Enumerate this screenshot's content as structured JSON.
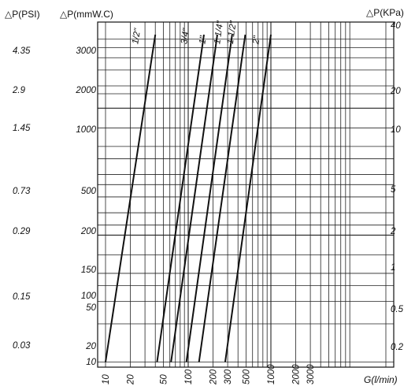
{
  "chart_data": {
    "type": "line",
    "axes": {
      "psi": {
        "title": "△P(PSI)",
        "ticks": [
          "4.35",
          "2.9",
          "1.45",
          "0.73",
          "0.29",
          "0.15",
          "0.03"
        ]
      },
      "mmwc": {
        "title": "△P(mmW.C)",
        "ticks": [
          "3000",
          "2000",
          "1000",
          "500",
          "200",
          "150",
          "100",
          "50",
          "20",
          "10"
        ]
      },
      "kpa": {
        "title": "△P(KPa)",
        "ticks": [
          "40",
          "20",
          "10",
          "5",
          "2",
          "1",
          "0.5",
          "0.2"
        ]
      }
    },
    "x_axis": {
      "label": "G(l/min)",
      "ticks": [
        "10",
        "20",
        "50",
        "100",
        "200",
        "300",
        "500",
        "1000",
        "2000",
        "3000"
      ]
    },
    "series": [
      {
        "name": "1/2\"",
        "points": [
          [
            10,
            10
          ],
          [
            40,
            3800
          ]
        ]
      },
      {
        "name": "3/4\"",
        "points": [
          [
            42,
            10
          ],
          [
            155,
            3800
          ]
        ]
      },
      {
        "name": "1\"",
        "points": [
          [
            62,
            10
          ],
          [
            225,
            3800
          ]
        ]
      },
      {
        "name": "1 1/4\"",
        "points": [
          [
            95,
            10
          ],
          [
            340,
            3800
          ]
        ]
      },
      {
        "name": "1 1/2\"",
        "points": [
          [
            135,
            10
          ],
          [
            490,
            3800
          ]
        ]
      },
      {
        "name": "2\"",
        "points": [
          [
            280,
            10
          ],
          [
            1000,
            3800
          ]
        ]
      }
    ],
    "grid": true,
    "legend": "none"
  },
  "colors": {
    "line": "#111111",
    "grid": "#222222",
    "background": "#ffffff"
  }
}
